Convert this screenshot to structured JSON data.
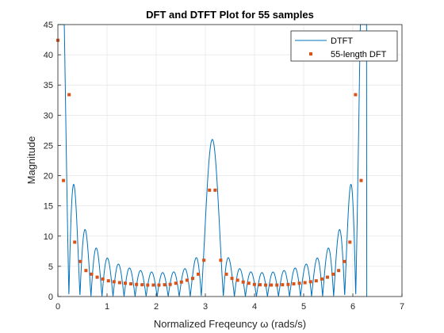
{
  "chart_data": {
    "type": "line",
    "title": "DFT and DTFT Plot for 55 samples",
    "xlabel": "Normalized Freqeuncy ω (rads/s)",
    "ylabel": "Magnitude",
    "xlim": [
      0,
      7
    ],
    "ylim": [
      0,
      45
    ],
    "xticks": [
      0,
      1,
      2,
      3,
      4,
      5,
      6,
      7
    ],
    "yticks": [
      0,
      5,
      10,
      15,
      20,
      25,
      30,
      35,
      40,
      45
    ],
    "grid": true,
    "legend_position": "top-right",
    "series": [
      {
        "name": "DTFT",
        "style": "line",
        "color": "#0072BD",
        "model": {
          "kind": "periodic-rect-dtft",
          "components": [
            {
              "center": 0,
              "amplitude": 42.5,
              "period": 28
            },
            {
              "center": 3.14159,
              "amplitude": 26.0,
              "period": 28
            },
            {
              "center": 6.28319,
              "amplitude": 42.5,
              "period": 28
            }
          ]
        },
        "peaks": [
          [
            0,
            42.5
          ],
          [
            0.2,
            38.7
          ],
          [
            3.14,
            26.0
          ],
          [
            6.08,
            38.7
          ],
          [
            6.28,
            42.5
          ]
        ]
      },
      {
        "name": "55-length DFT",
        "style": "markers",
        "color": "#D95319",
        "x": [
          0.0,
          0.1142,
          0.2285,
          0.3427,
          0.457,
          0.5712,
          0.6854,
          0.7997,
          0.9139,
          1.0282,
          1.1424,
          1.2566,
          1.3709,
          1.4851,
          1.5994,
          1.7136,
          1.8278,
          1.9421,
          2.0563,
          2.1706,
          2.2848,
          2.399,
          2.5133,
          2.6275,
          2.7418,
          2.856,
          2.9702,
          3.0845,
          3.1987,
          3.313,
          3.4272,
          3.5414,
          3.6557,
          3.7699,
          3.8842,
          3.9984,
          4.1126,
          4.2269,
          4.3411,
          4.4554,
          4.5696,
          4.6838,
          4.7981,
          4.9123,
          5.0266,
          5.1408,
          5.255,
          5.3693,
          5.4835,
          5.5978,
          5.712,
          5.8262,
          5.9405,
          6.0547,
          6.169
        ],
        "y": [
          42.4,
          19.2,
          33.4,
          9.0,
          5.8,
          4.3,
          3.7,
          3.2,
          2.9,
          2.6,
          2.45,
          2.3,
          2.2,
          2.1,
          2.0,
          1.95,
          1.9,
          1.9,
          1.9,
          1.95,
          2.0,
          2.2,
          2.4,
          2.7,
          3.0,
          3.7,
          6.0,
          17.6,
          17.6,
          6.0,
          3.7,
          3.0,
          2.7,
          2.4,
          2.2,
          2.0,
          1.95,
          1.9,
          1.9,
          1.9,
          1.95,
          2.0,
          2.1,
          2.2,
          2.3,
          2.45,
          2.6,
          2.9,
          3.2,
          3.7,
          4.3,
          5.8,
          9.0,
          33.4,
          19.2
        ]
      }
    ]
  }
}
